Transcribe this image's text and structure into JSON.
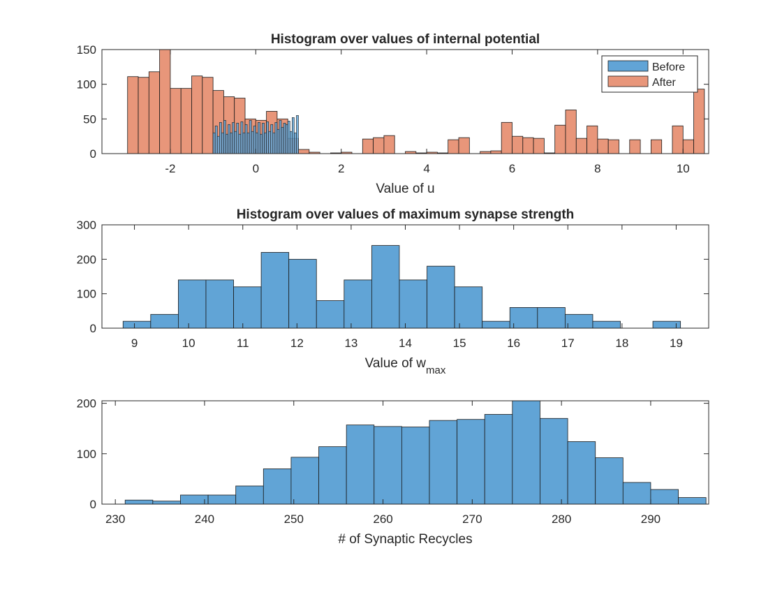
{
  "colors": {
    "before": "#61a4d6",
    "after": "#e8967a",
    "edge": "#1a1a1a",
    "axis": "#262626",
    "background": "#ffffff"
  },
  "chart_data": [
    {
      "type": "bar",
      "title": "Histogram over values of internal potential",
      "xlabel": "Value of u",
      "xlabel_sub": "",
      "ylabel": "",
      "xlim": [
        -3.6,
        10.6
      ],
      "ylim": [
        0,
        150
      ],
      "xticks": [
        -2,
        0,
        2,
        4,
        6,
        8,
        10
      ],
      "yticks": [
        0,
        50,
        100,
        150
      ],
      "grid": false,
      "legend": {
        "position": "top-right",
        "entries": [
          "Before",
          "After"
        ]
      },
      "series": [
        {
          "name": "After",
          "bin_width": 0.25,
          "bins": [
            [
              -3.0,
              111
            ],
            [
              -2.75,
              110
            ],
            [
              -2.5,
              118
            ],
            [
              -2.25,
              150
            ],
            [
              -2.0,
              94
            ],
            [
              -1.75,
              94
            ],
            [
              -1.5,
              112
            ],
            [
              -1.25,
              110
            ],
            [
              -1.0,
              91
            ],
            [
              -0.75,
              82
            ],
            [
              -0.5,
              80
            ],
            [
              -0.25,
              50
            ],
            [
              0.0,
              48
            ],
            [
              0.25,
              61
            ],
            [
              0.5,
              50
            ],
            [
              0.75,
              22
            ],
            [
              1.0,
              6
            ],
            [
              1.25,
              2
            ],
            [
              1.5,
              0
            ],
            [
              1.75,
              1
            ],
            [
              2.0,
              2
            ],
            [
              2.25,
              0
            ],
            [
              2.5,
              21
            ],
            [
              2.75,
              23
            ],
            [
              3.0,
              26
            ],
            [
              3.25,
              0
            ],
            [
              3.5,
              3
            ],
            [
              3.75,
              1
            ],
            [
              4.0,
              2
            ],
            [
              4.25,
              1
            ],
            [
              4.5,
              20
            ],
            [
              4.75,
              23
            ],
            [
              5.0,
              0
            ],
            [
              5.25,
              3
            ],
            [
              5.5,
              4
            ],
            [
              5.75,
              45
            ],
            [
              6.0,
              25
            ],
            [
              6.25,
              23
            ],
            [
              6.5,
              22
            ],
            [
              6.75,
              1
            ],
            [
              7.0,
              41
            ],
            [
              7.25,
              63
            ],
            [
              7.5,
              22
            ],
            [
              7.75,
              40
            ],
            [
              8.0,
              21
            ],
            [
              8.25,
              20
            ],
            [
              8.75,
              20
            ],
            [
              9.25,
              20
            ],
            [
              9.75,
              40
            ],
            [
              10.0,
              20
            ],
            [
              10.25,
              93
            ]
          ]
        },
        {
          "name": "Before",
          "bin_width": 0.05,
          "bins": [
            [
              -1.0,
              30
            ],
            [
              -0.95,
              40
            ],
            [
              -0.9,
              25
            ],
            [
              -0.85,
              45
            ],
            [
              -0.8,
              30
            ],
            [
              -0.75,
              48
            ],
            [
              -0.7,
              28
            ],
            [
              -0.65,
              42
            ],
            [
              -0.6,
              30
            ],
            [
              -0.55,
              45
            ],
            [
              -0.5,
              32
            ],
            [
              -0.45,
              44
            ],
            [
              -0.4,
              28
            ],
            [
              -0.35,
              46
            ],
            [
              -0.3,
              30
            ],
            [
              -0.25,
              42
            ],
            [
              -0.2,
              30
            ],
            [
              -0.15,
              48
            ],
            [
              -0.1,
              32
            ],
            [
              -0.05,
              40
            ],
            [
              0.0,
              30
            ],
            [
              0.05,
              45
            ],
            [
              0.1,
              28
            ],
            [
              0.15,
              44
            ],
            [
              0.2,
              30
            ],
            [
              0.25,
              46
            ],
            [
              0.3,
              32
            ],
            [
              0.35,
              42
            ],
            [
              0.4,
              30
            ],
            [
              0.45,
              45
            ],
            [
              0.5,
              35
            ],
            [
              0.55,
              48
            ],
            [
              0.6,
              38
            ],
            [
              0.65,
              44
            ],
            [
              0.7,
              42
            ],
            [
              0.75,
              47
            ],
            [
              0.8,
              32
            ],
            [
              0.85,
              52
            ],
            [
              0.9,
              30
            ],
            [
              0.95,
              55
            ]
          ]
        }
      ]
    },
    {
      "type": "bar",
      "title": "Histogram over values of maximum synapse strength",
      "xlabel": "Value of w",
      "xlabel_sub": "max",
      "ylabel": "",
      "xlim": [
        8.4,
        19.6
      ],
      "ylim": [
        0,
        300
      ],
      "xticks": [
        9,
        10,
        11,
        12,
        13,
        14,
        15,
        16,
        17,
        18,
        19
      ],
      "yticks": [
        0,
        100,
        200,
        300
      ],
      "grid": false,
      "series": [
        {
          "name": "",
          "bin_width": 0.51,
          "bins": [
            [
              8.79,
              20
            ],
            [
              9.3,
              40
            ],
            [
              9.81,
              140
            ],
            [
              10.32,
              140
            ],
            [
              10.83,
              120
            ],
            [
              11.34,
              220
            ],
            [
              11.85,
              200
            ],
            [
              12.36,
              80
            ],
            [
              12.87,
              140
            ],
            [
              13.38,
              240
            ],
            [
              13.89,
              140
            ],
            [
              14.4,
              180
            ],
            [
              14.91,
              120
            ],
            [
              15.42,
              20
            ],
            [
              15.93,
              60
            ],
            [
              16.44,
              60
            ],
            [
              16.95,
              40
            ],
            [
              17.46,
              20
            ],
            [
              17.97,
              0
            ],
            [
              18.48,
              0
            ],
            [
              18.57,
              20
            ]
          ]
        }
      ]
    },
    {
      "type": "bar",
      "title": "",
      "xlabel": "# of Synaptic Recycles",
      "xlabel_sub": "",
      "ylabel": "",
      "xlim": [
        228.5,
        296.5
      ],
      "ylim": [
        0,
        205
      ],
      "xticks": [
        230,
        240,
        250,
        260,
        270,
        280,
        290
      ],
      "yticks": [
        0,
        100,
        200
      ],
      "grid": false,
      "series": [
        {
          "name": "",
          "bin_width": 3.1,
          "bins": [
            [
              231.1,
              8
            ],
            [
              234.2,
              6
            ],
            [
              237.3,
              18
            ],
            [
              240.4,
              18
            ],
            [
              243.5,
              36
            ],
            [
              246.6,
              70
            ],
            [
              249.7,
              93
            ],
            [
              252.8,
              114
            ],
            [
              255.9,
              157
            ],
            [
              259.0,
              154
            ],
            [
              262.1,
              153
            ],
            [
              265.2,
              166
            ],
            [
              268.3,
              168
            ],
            [
              271.4,
              178
            ],
            [
              274.5,
              205
            ],
            [
              277.6,
              170
            ],
            [
              280.7,
              124
            ],
            [
              283.8,
              92
            ],
            [
              286.9,
              43
            ],
            [
              290.0,
              29
            ],
            [
              293.1,
              13
            ]
          ]
        }
      ]
    }
  ]
}
